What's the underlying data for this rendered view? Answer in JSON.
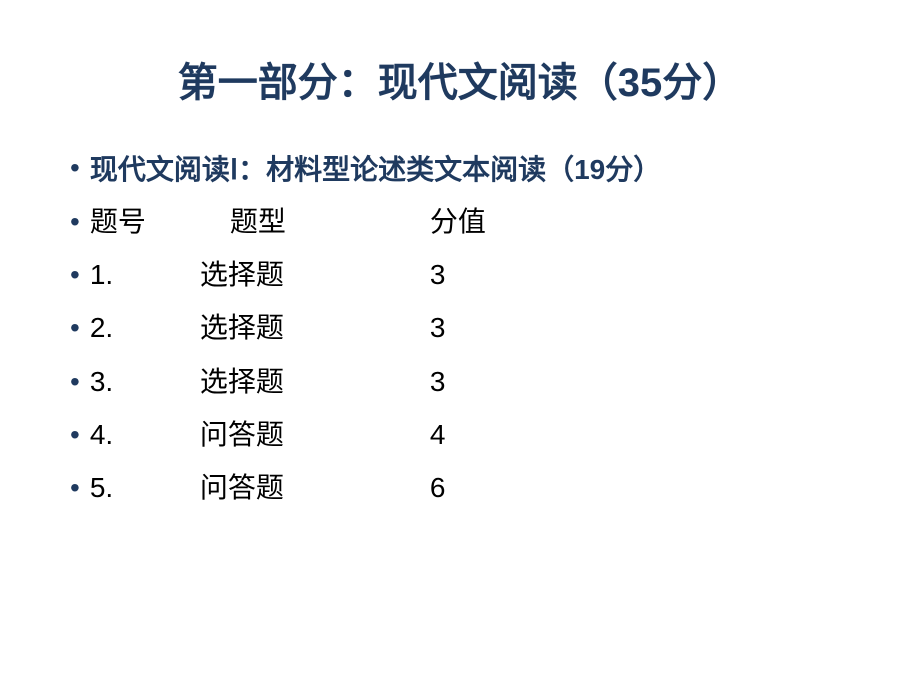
{
  "colors": {
    "title": "#1f3a5f",
    "subtitle": "#1f3a5f",
    "body": "#000000",
    "bullet": "#1f3a5f"
  },
  "fonts": {
    "title_size": 40,
    "subtitle_size": 28,
    "body_size": 28
  },
  "title": "第一部分：现代文阅读（35分）",
  "subtitle": "现代文阅读Ⅰ：材料型论述类文本阅读（19分）",
  "table": {
    "header": {
      "num": "题号",
      "type": "题型",
      "score": "分值"
    },
    "rows": [
      {
        "num": "1.",
        "type": "选择题",
        "score": "3"
      },
      {
        "num": "2.",
        "type": "选择题",
        "score": "3"
      },
      {
        "num": "3.",
        "type": "选择题",
        "score": "3"
      },
      {
        "num": "4.",
        "type": "问答题",
        "score": "4"
      },
      {
        "num": "5.",
        "type": "问答题",
        "score": "6"
      }
    ]
  }
}
